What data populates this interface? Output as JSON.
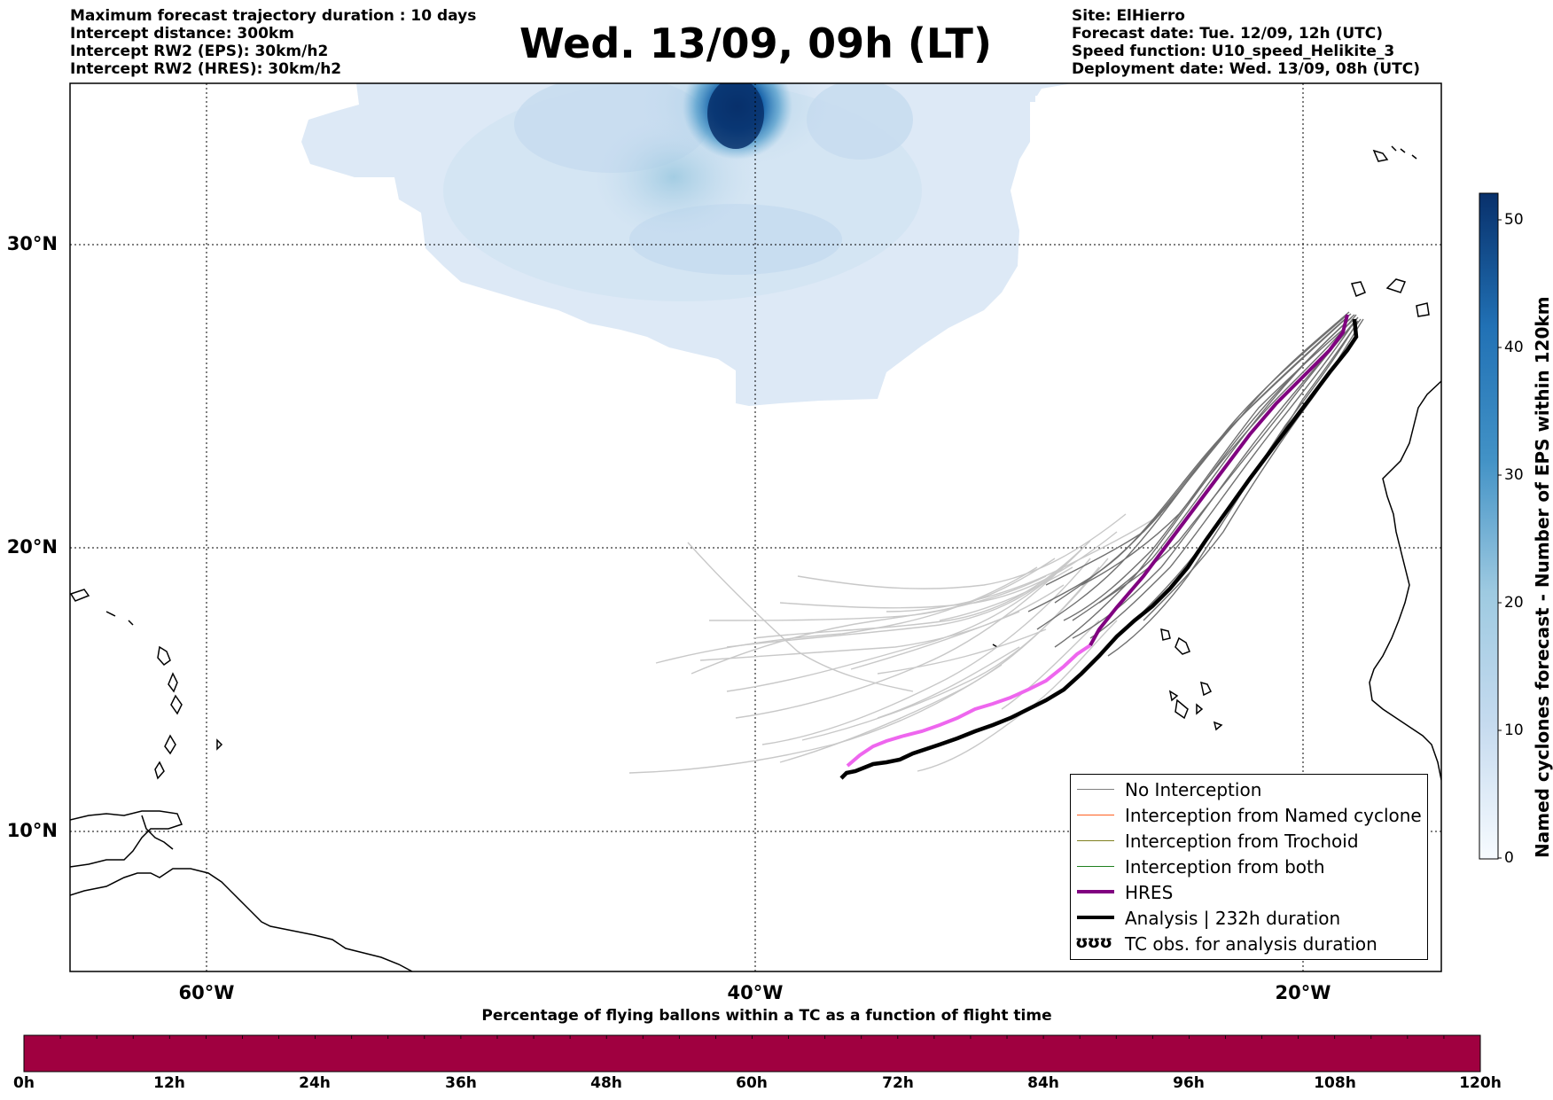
{
  "header": {
    "info_left": [
      "Maximum forecast trajectory duration : 10 days",
      "Intercept distance: 300km",
      "Intercept RW2 (EPS):  30km/h2",
      "Intercept RW2 (HRES): 30km/h2"
    ],
    "title": "Wed. 13/09, 09h (LT)",
    "info_right": [
      "Site: ElHierro",
      "Forecast date: Tue. 12/09, 12h (UTC)",
      "Speed function: U10_speed_Helikite_3",
      "Deployment date: Wed. 13/09, 08h (UTC)"
    ]
  },
  "map": {
    "lon_range": [
      -65,
      -15
    ],
    "lat_range": [
      5.5,
      34.8
    ],
    "lat_labels": [
      "30°N",
      "20°N",
      "10°N"
    ],
    "lon_labels": [
      "60°W",
      "40°W",
      "20°W"
    ],
    "lat_lines": [
      30,
      20,
      10
    ],
    "lon_lines": [
      -60,
      -40,
      -20
    ]
  },
  "legend": {
    "items": [
      {
        "label": "No Interception",
        "color": "#808080"
      },
      {
        "label": "Interception from Named cyclone",
        "color": "#ff6020"
      },
      {
        "label": "Interception from Trochoid",
        "color": "#808020"
      },
      {
        "label": "Interception from both",
        "color": "#208020"
      },
      {
        "label": "HRES",
        "color": "#800080"
      },
      {
        "label": "Analysis | 232h duration",
        "color": "#000000"
      }
    ],
    "tc_obs_label": "TC obs. for analysis duration",
    "tc_obs_glyph": "ʊʊʊ"
  },
  "colorbar": {
    "title": "Named cyclones forecast - Number of EPS within 120km",
    "ticks": [
      "0",
      "10",
      "20",
      "30",
      "40",
      "50"
    ],
    "min": 0,
    "max": 52
  },
  "time_bar": {
    "title": "Percentage of flying ballons within a TC as a function of flight time",
    "labels": [
      "0h",
      "12h",
      "24h",
      "36h",
      "48h",
      "60h",
      "72h",
      "84h",
      "96h",
      "108h",
      "120h"
    ],
    "color": "#a00040"
  }
}
